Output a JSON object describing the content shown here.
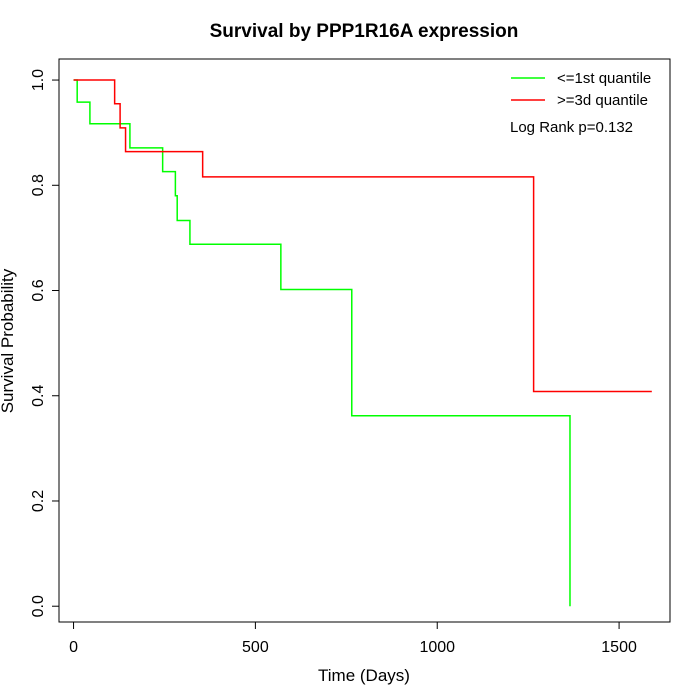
{
  "chart_data": {
    "type": "line",
    "step": true,
    "title": "Survival by PPP1R16A expression",
    "xlabel": "Time (Days)",
    "ylabel": "Survival Probability",
    "xlim": [
      -40,
      1640
    ],
    "ylim": [
      -0.03,
      1.04
    ],
    "xticks": [
      0,
      500,
      1000,
      1500
    ],
    "yticks": [
      0.0,
      0.2,
      0.4,
      0.6,
      0.8,
      1.0
    ],
    "xtick_labels": [
      "0",
      "500",
      "1000",
      "1500"
    ],
    "ytick_labels": [
      "0.0",
      "0.2",
      "0.4",
      "0.6",
      "0.8",
      "1.0"
    ],
    "grid": false,
    "legend_position": "top-right",
    "annotation": "Log Rank p=0.132",
    "series": [
      {
        "name": "<=1st quantile",
        "color": "#00ff00",
        "x": [
          0,
          10,
          45,
          155,
          245,
          280,
          285,
          320,
          570,
          765,
          1365,
          1365
        ],
        "y": [
          1.0,
          0.958,
          0.917,
          0.871,
          0.826,
          0.78,
          0.733,
          0.688,
          0.602,
          0.362,
          0.362,
          0.0
        ]
      },
      {
        "name": ">=3d quantile",
        "color": "#ff0000",
        "x": [
          0,
          113,
          128,
          143,
          355,
          1265,
          1590
        ],
        "y": [
          1.0,
          0.955,
          0.909,
          0.864,
          0.816,
          0.408,
          0.408
        ]
      }
    ]
  }
}
